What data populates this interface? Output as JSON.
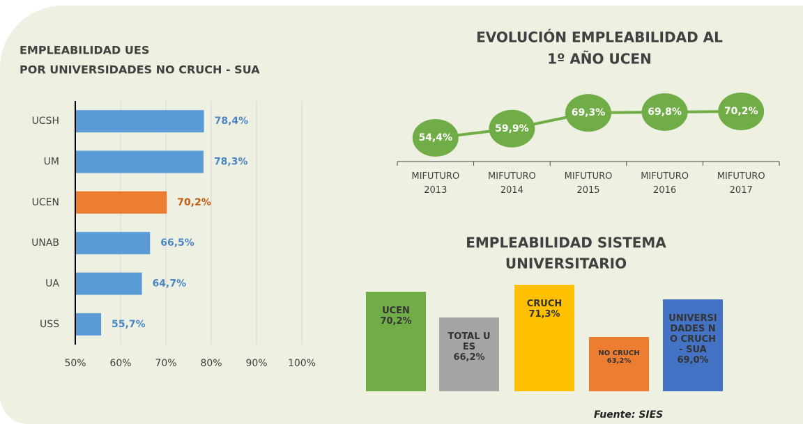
{
  "chart_data": [
    {
      "type": "hbar",
      "title": [
        "EMPLEABILIDAD UES",
        "POR UNIVERSIDADES NO CRUCH - SUA"
      ],
      "categories": [
        "UCSH",
        "UM",
        "UCEN",
        "UNAB",
        "UA",
        "USS"
      ],
      "values": [
        78.4,
        78.3,
        70.2,
        66.5,
        64.7,
        55.7
      ],
      "value_labels": [
        "78,4%",
        "78,3%",
        "70,2%",
        "66,5%",
        "64,7%",
        "55,7%"
      ],
      "colors": [
        "#5b9bd5",
        "#5b9bd5",
        "#ed7d31",
        "#5b9bd5",
        "#5b9bd5",
        "#5b9bd5"
      ],
      "label_colors": [
        "#4a86c5",
        "#4a86c5",
        "#c55a11",
        "#4a86c5",
        "#4a86c5",
        "#4a86c5"
      ],
      "xlim": [
        50,
        100
      ],
      "xticks": [
        {
          "value": 50,
          "label": "50%"
        },
        {
          "value": 60,
          "label": "60%"
        },
        {
          "value": 70,
          "label": "70%"
        },
        {
          "value": 80,
          "label": "80%"
        },
        {
          "value": 90,
          "label": "90%"
        },
        {
          "value": 100,
          "label": "100%"
        }
      ],
      "grid": true
    },
    {
      "type": "line",
      "title": [
        "EVOLUCIÓN EMPLEABILIDAD AL",
        "1º AÑO UCEN"
      ],
      "categories": [
        "MIFUTURO 2013",
        "MIFUTURO 2014",
        "MIFUTURO 2015",
        "MIFUTURO 2016",
        "MIFUTURO 2017"
      ],
      "values": [
        54.4,
        59.9,
        69.3,
        69.8,
        70.2
      ],
      "value_labels": [
        "54,4%",
        "59,9%",
        "69,3%",
        "69,8%",
        "70,2%"
      ],
      "color": "#70ad47"
    },
    {
      "type": "bar",
      "title": [
        "EMPLEABILIDAD SISTEMA",
        "UNIVERSITARIO"
      ],
      "categories": [
        "UCEN",
        "TOTAL UES",
        "CRUCH",
        "NO CRUCH",
        "UNIVERSIDADES NO CRUCH - SUA"
      ],
      "values": [
        70.2,
        66.2,
        71.3,
        63.2,
        69.0
      ],
      "value_labels": [
        "70,2%",
        "66,2%",
        "71,3%",
        "63,2%",
        "69,0%"
      ],
      "colors": [
        "#70ad47",
        "#a5a5a5",
        "#ffc000",
        "#ed7d31",
        "#4472c4"
      ],
      "source": "Fuente: SIES"
    }
  ]
}
